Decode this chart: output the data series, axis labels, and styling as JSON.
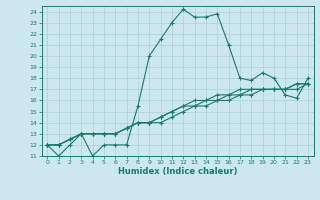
{
  "xlabel": "Humidex (Indice chaleur)",
  "bg_color": "#cce8ec",
  "grid_color": "#b0d4d8",
  "line_color": "#1a7a6e",
  "xlim": [
    -0.5,
    23.5
  ],
  "ylim": [
    11,
    24.5
  ],
  "xticks": [
    0,
    1,
    2,
    3,
    4,
    5,
    6,
    7,
    8,
    9,
    10,
    11,
    12,
    13,
    14,
    15,
    16,
    17,
    18,
    19,
    20,
    21,
    22,
    23
  ],
  "yticks": [
    11,
    12,
    13,
    14,
    15,
    16,
    17,
    18,
    19,
    20,
    21,
    22,
    23,
    24
  ],
  "lines": [
    [
      12,
      11,
      12,
      13,
      11,
      12,
      12,
      12,
      15.5,
      20,
      21.5,
      23,
      24.2,
      23.5,
      23.5,
      23.8,
      21,
      18,
      17.8,
      18.5,
      18,
      16.5,
      16.2,
      18
    ],
    [
      12,
      12,
      12.5,
      13,
      13,
      13,
      13,
      13.5,
      14,
      14,
      14.5,
      15,
      15.5,
      16,
      16,
      16.5,
      16.5,
      17,
      17,
      17,
      17,
      17,
      17.5,
      17.5
    ],
    [
      12,
      12,
      12.5,
      13,
      13,
      13,
      13,
      13.5,
      14,
      14,
      14.5,
      15,
      15.5,
      15.5,
      16,
      16,
      16.5,
      16.5,
      17,
      17,
      17,
      17,
      17.5,
      17.5
    ],
    [
      12,
      12,
      12.5,
      13,
      13,
      13,
      13,
      13.5,
      14,
      14,
      14,
      14.5,
      15,
      15.5,
      15.5,
      16,
      16,
      16.5,
      16.5,
      17,
      17,
      17,
      17,
      17.5
    ]
  ]
}
